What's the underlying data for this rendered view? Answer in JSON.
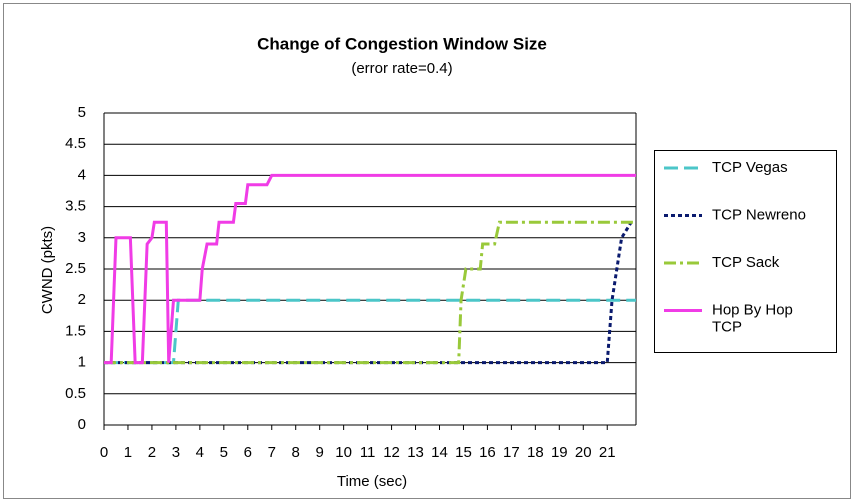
{
  "chart_data": {
    "type": "line",
    "title": "Change of Congestion Window Size",
    "subtitle": "(error rate=0.4)",
    "x_label": "Time (sec)",
    "y_label": "CWND (pkts)",
    "xlim": [
      0,
      22.2
    ],
    "ylim": [
      0,
      5
    ],
    "xticks": [
      0,
      1,
      2,
      3,
      4,
      5,
      6,
      7,
      8,
      9,
      10,
      11,
      12,
      13,
      14,
      15,
      16,
      17,
      18,
      19,
      20,
      21
    ],
    "yticks": [
      0,
      0.5,
      1,
      1.5,
      2,
      2.5,
      3,
      3.5,
      4,
      4.5,
      5
    ],
    "grid": true,
    "legend": "right",
    "series": [
      {
        "name": "TCP Vegas",
        "color": "#4bc6c8",
        "dash": "dash",
        "x": [
          0,
          2.9,
          3.1,
          22.2
        ],
        "values": [
          1,
          1,
          2,
          2
        ]
      },
      {
        "name": "TCP Newreno",
        "color": "#0a1a6e",
        "dash": "dot",
        "x": [
          0,
          21.0,
          21.2,
          21.6,
          22.0
        ],
        "values": [
          1,
          1,
          2,
          3,
          3.25
        ]
      },
      {
        "name": "TCP Sack",
        "color": "#99c93a",
        "dash": "dashdot",
        "x": [
          0,
          14.8,
          14.9,
          15.1,
          15.7,
          15.8,
          16.3,
          16.5,
          22.2
        ],
        "values": [
          1,
          1,
          2,
          2.5,
          2.5,
          2.9,
          2.9,
          3.25,
          3.25
        ]
      },
      {
        "name": "Hop By Hop TCP",
        "color": "#f03ce6",
        "dash": "solid",
        "x": [
          0,
          0.3,
          0.4,
          0.5,
          1.1,
          1.3,
          1.6,
          1.8,
          2.0,
          2.1,
          2.6,
          2.7,
          2.9,
          4.0,
          4.1,
          4.3,
          4.7,
          4.8,
          5.4,
          5.5,
          5.9,
          6.0,
          6.8,
          7.0,
          22.2
        ],
        "values": [
          1,
          1,
          2,
          3,
          3,
          1,
          1,
          2.9,
          3,
          3.25,
          3.25,
          1,
          2,
          2,
          2.5,
          2.9,
          2.9,
          3.25,
          3.25,
          3.55,
          3.55,
          3.85,
          3.85,
          4,
          4
        ]
      }
    ]
  }
}
